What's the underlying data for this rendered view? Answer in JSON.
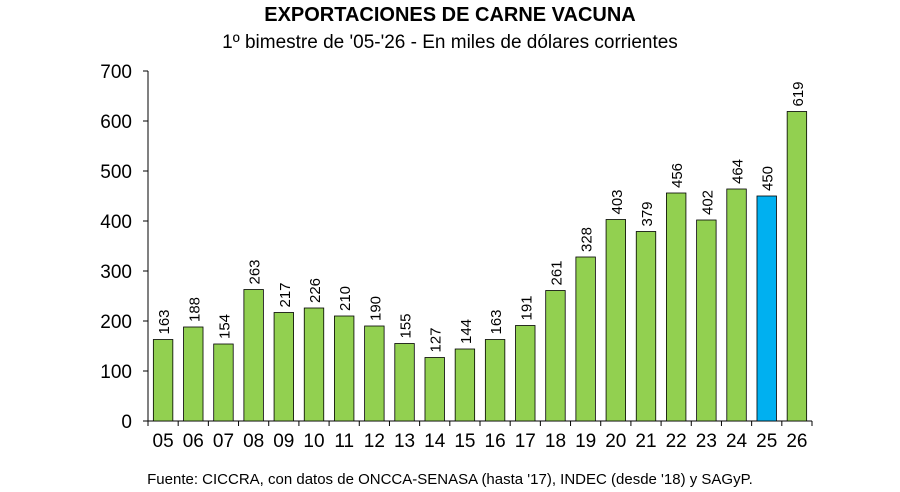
{
  "chart_data": {
    "type": "bar",
    "title": "EXPORTACIONES DE CARNE VACUNA",
    "subtitle": "1º bimestre de '05-'26 - En miles de dólares corrientes",
    "source": "Fuente: CICCRA, con datos de ONCCA-SENASA (hasta '17), INDEC (desde '18) y SAGyP.",
    "categories": [
      "05",
      "06",
      "07",
      "08",
      "09",
      "10",
      "11",
      "12",
      "13",
      "14",
      "15",
      "16",
      "17",
      "18",
      "19",
      "20",
      "21",
      "22",
      "23",
      "24",
      "25",
      "26"
    ],
    "values": [
      163,
      188,
      154,
      263,
      217,
      226,
      210,
      190,
      155,
      127,
      144,
      163,
      191,
      261,
      328,
      403,
      379,
      456,
      402,
      464,
      450,
      619
    ],
    "data_labels": [
      "163",
      "188",
      "154",
      "263",
      "217",
      "226",
      "210",
      "190",
      "155",
      "127",
      "144",
      "163",
      "191",
      "261",
      "328",
      "403",
      "379",
      "456",
      "402",
      "464",
      "450",
      "619"
    ],
    "highlight_category": "25",
    "ylim": [
      0,
      700
    ],
    "yticks": [
      0,
      100,
      200,
      300,
      400,
      500,
      600,
      700
    ],
    "grid": false,
    "legend": "none",
    "colors": {
      "bar": "#92d050",
      "bar_highlight": "#00b0f0",
      "bar_stroke": "#000000",
      "axis": "#000000"
    }
  }
}
